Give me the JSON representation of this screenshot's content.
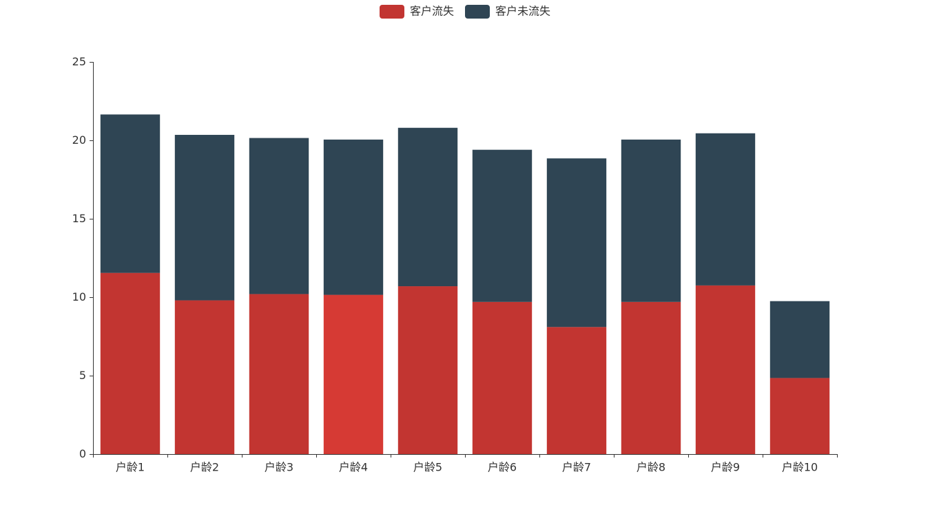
{
  "chart_data": {
    "type": "bar",
    "stacked": true,
    "categories": [
      "户龄1",
      "户龄2",
      "户龄3",
      "户龄4",
      "户龄5",
      "户龄6",
      "户龄7",
      "户龄8",
      "户龄9",
      "户龄10"
    ],
    "series": [
      {
        "name": "客户流失",
        "color": "#c23531",
        "values": [
          11.55,
          9.8,
          10.2,
          10.15,
          10.7,
          9.7,
          8.1,
          9.7,
          10.75,
          4.85
        ]
      },
      {
        "name": "客户未流失",
        "color": "#2f4554",
        "values": [
          10.1,
          10.55,
          9.95,
          9.9,
          10.1,
          9.7,
          10.75,
          10.35,
          9.7,
          4.9
        ]
      }
    ],
    "highlight": {
      "series": 0,
      "index": 3,
      "color": "#d63a34"
    },
    "ylim": [
      0,
      25
    ],
    "yticks": [
      0,
      5,
      10,
      15,
      20,
      25
    ],
    "grid": false,
    "legend_position": "top-center"
  }
}
